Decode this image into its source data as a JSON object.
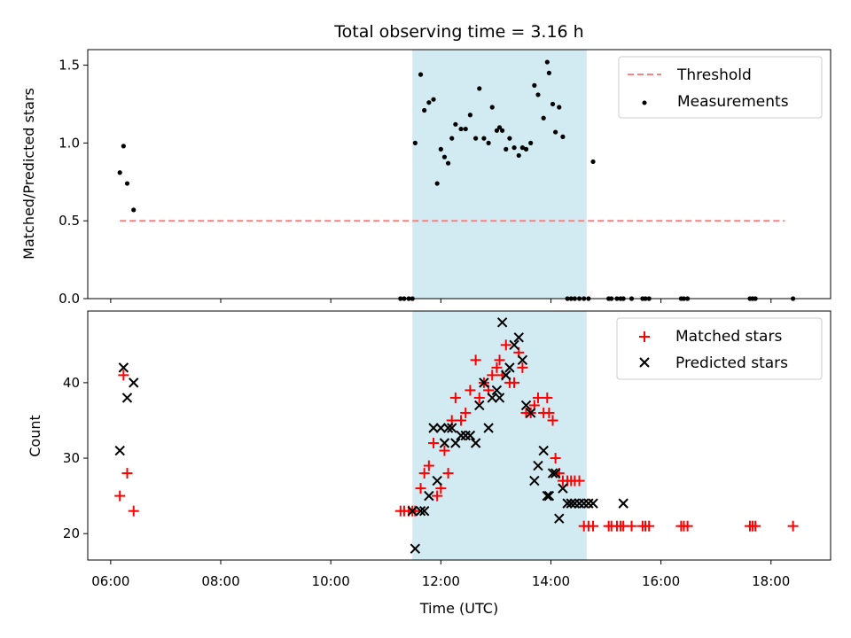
{
  "chart_data": {
    "title": "Total observing time = 3.16 h",
    "colors": {
      "threshold": "#ff7f7f",
      "measurements": "#000000",
      "matched": "#ff0000",
      "predicted": "#000000",
      "shade": "#add8e6"
    },
    "shaded_interval": {
      "start": "11:29",
      "end": "14:39"
    },
    "x_axis": {
      "label": "Time (UTC)",
      "range": [
        "05:35",
        "19:05"
      ],
      "ticks": [
        "06:00",
        "08:00",
        "10:00",
        "12:00",
        "14:00",
        "16:00",
        "18:00"
      ]
    },
    "panels": [
      {
        "type": "scatter",
        "ylabel": "Matched/Predicted stars",
        "ylim": [
          0,
          1.6
        ],
        "yticks": [
          "0.0",
          "0.5",
          "1.0",
          "1.5"
        ],
        "legend_position": "top-right",
        "threshold": {
          "name": "Threshold",
          "x": [
            "06:10",
            "18:15"
          ],
          "y": 0.5
        },
        "series": [
          {
            "name": "Measurements",
            "marker": "dot",
            "x": [
              "06:10",
              "06:14",
              "06:18",
              "06:25",
              "11:16",
              "11:20",
              "11:25",
              "11:29",
              "11:32",
              "11:38",
              "11:42",
              "11:47",
              "11:52",
              "11:56",
              "12:00",
              "12:04",
              "12:08",
              "12:12",
              "12:16",
              "12:22",
              "12:27",
              "12:32",
              "12:38",
              "12:42",
              "12:47",
              "12:52",
              "12:56",
              "13:01",
              "13:04",
              "13:07",
              "13:11",
              "13:15",
              "13:20",
              "13:25",
              "13:29",
              "13:33",
              "13:38",
              "13:42",
              "13:46",
              "13:52",
              "13:56",
              "13:58",
              "14:02",
              "14:05",
              "14:09",
              "14:13",
              "14:18",
              "14:22",
              "14:26",
              "14:31",
              "14:36",
              "14:41",
              "14:46",
              "15:03",
              "15:06",
              "15:12",
              "15:16",
              "15:19",
              "15:28",
              "15:40",
              "15:43",
              "15:47",
              "16:22",
              "16:25",
              "16:29",
              "17:37",
              "17:40",
              "17:43",
              "18:24"
            ],
            "y": [
              0.81,
              0.98,
              0.74,
              0.57,
              0,
              0,
              0,
              0,
              1.0,
              1.44,
              1.21,
              1.26,
              1.28,
              0.74,
              0.96,
              0.91,
              0.87,
              1.03,
              1.12,
              1.09,
              1.09,
              1.18,
              1.03,
              1.35,
              1.03,
              1.0,
              1.23,
              1.08,
              1.1,
              1.08,
              0.96,
              1.03,
              0.97,
              0.92,
              0.97,
              0.96,
              1.0,
              1.37,
              1.31,
              1.16,
              1.52,
              1.45,
              1.25,
              1.07,
              1.23,
              1.04,
              0,
              0,
              0,
              0,
              0,
              0,
              0.88,
              0,
              0,
              0,
              0,
              0,
              0,
              0,
              0,
              0,
              0,
              0,
              0,
              0,
              0,
              0,
              0
            ]
          }
        ]
      },
      {
        "type": "scatter",
        "ylabel": "Count",
        "ylim": [
          16.5,
          49.5
        ],
        "yticks": [
          "20",
          "30",
          "40"
        ],
        "legend_position": "top-right",
        "series": [
          {
            "name": "Matched stars",
            "marker": "plus",
            "x": [
              "06:10",
              "06:14",
              "06:18",
              "06:25",
              "11:16",
              "11:20",
              "11:25",
              "11:29",
              "11:32",
              "11:38",
              "11:42",
              "11:47",
              "11:52",
              "11:56",
              "12:00",
              "12:04",
              "12:08",
              "12:12",
              "12:16",
              "12:22",
              "12:27",
              "12:32",
              "12:38",
              "12:42",
              "12:47",
              "12:52",
              "12:56",
              "13:01",
              "13:04",
              "13:07",
              "13:11",
              "13:15",
              "13:20",
              "13:25",
              "13:29",
              "13:33",
              "13:38",
              "13:42",
              "13:46",
              "13:52",
              "13:56",
              "13:58",
              "14:02",
              "14:05",
              "14:09",
              "14:13",
              "14:18",
              "14:22",
              "14:26",
              "14:31",
              "14:36",
              "14:41",
              "14:46",
              "15:03",
              "15:06",
              "15:12",
              "15:16",
              "15:19",
              "15:28",
              "15:40",
              "15:43",
              "15:47",
              "16:22",
              "16:25",
              "16:29",
              "17:37",
              "17:40",
              "17:43",
              "18:24"
            ],
            "y": [
              25,
              41,
              28,
              23,
              23,
              23,
              23,
              23,
              23,
              26,
              28,
              29,
              32,
              25,
              26,
              31,
              28,
              35,
              38,
              35,
              36,
              39,
              43,
              38,
              40,
              39,
              41,
              42,
              43,
              41,
              45,
              40,
              40,
              44,
              42,
              36,
              36,
              37,
              38,
              36,
              38,
              36,
              35,
              30,
              28,
              27,
              27,
              27,
              27,
              27,
              21,
              21,
              21,
              21,
              21,
              21,
              21,
              21,
              21,
              21,
              21,
              21,
              21,
              21,
              21,
              21,
              21,
              21,
              21
            ]
          },
          {
            "name": "Predicted stars",
            "marker": "x",
            "x": [
              "06:10",
              "06:14",
              "06:18",
              "06:25",
              "11:29",
              "11:32",
              "11:38",
              "11:42",
              "11:47",
              "11:52",
              "11:56",
              "12:00",
              "12:04",
              "12:08",
              "12:12",
              "12:16",
              "12:22",
              "12:27",
              "12:32",
              "12:38",
              "12:42",
              "12:47",
              "12:52",
              "12:56",
              "13:01",
              "13:04",
              "13:07",
              "13:11",
              "13:15",
              "13:20",
              "13:25",
              "13:29",
              "13:33",
              "13:38",
              "13:42",
              "13:46",
              "13:52",
              "13:56",
              "13:58",
              "14:02",
              "14:05",
              "14:09",
              "14:13",
              "14:18",
              "14:22",
              "14:26",
              "14:31",
              "14:36",
              "14:41",
              "14:46",
              "15:19"
            ],
            "y": [
              31,
              42,
              38,
              40,
              23,
              18,
              23,
              23,
              25,
              34,
              27,
              34,
              32,
              34,
              34,
              32,
              33,
              33,
              33,
              32,
              37,
              40,
              34,
              38,
              39,
              38,
              48,
              41,
              42,
              45,
              46,
              43,
              37,
              36,
              27,
              29,
              31,
              25,
              25,
              28,
              28,
              22,
              26,
              24,
              24,
              24,
              24,
              24,
              24,
              24,
              24
            ]
          }
        ]
      }
    ]
  }
}
